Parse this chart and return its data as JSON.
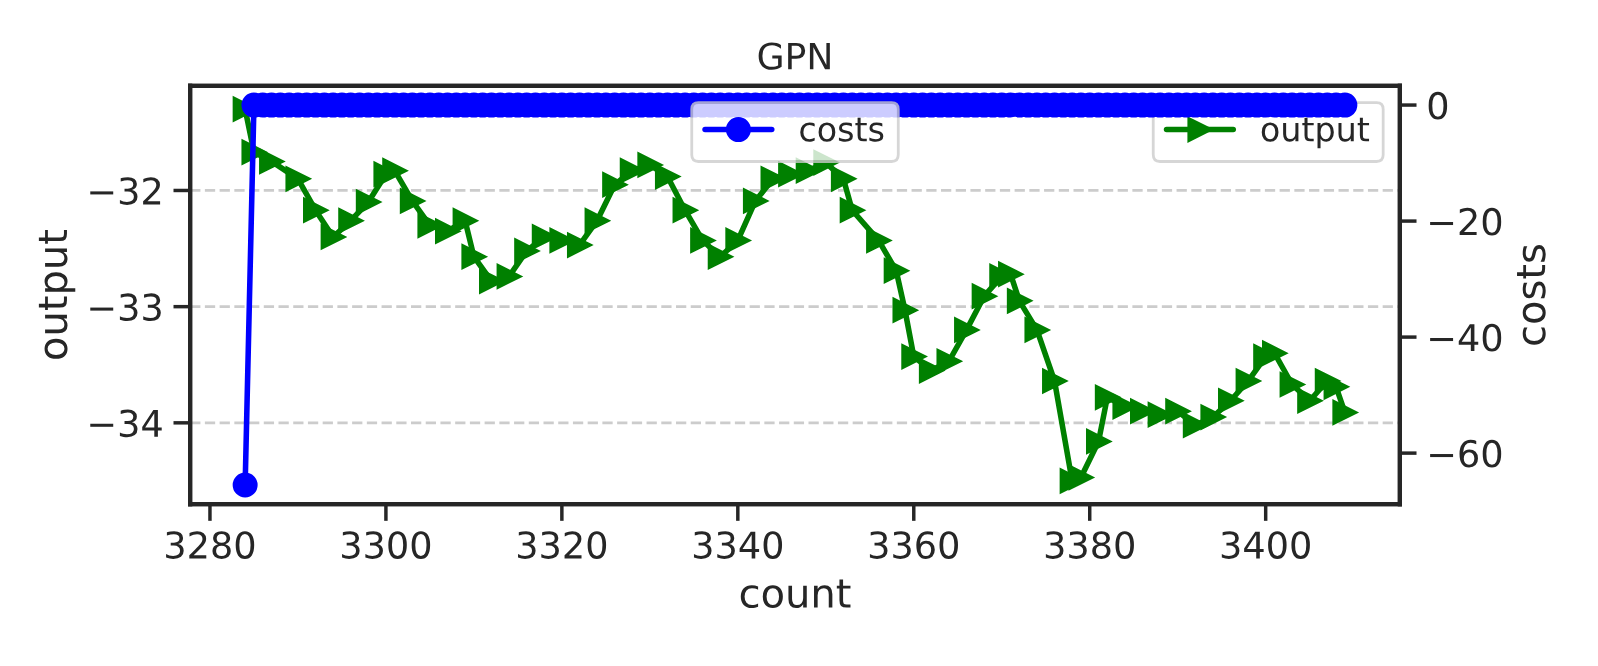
{
  "chart_data": {
    "type": "line",
    "title": "GPN",
    "xlabel": "count",
    "ylabel": "output",
    "y2label": "costs",
    "xlim": [
      3277.75,
      3415.25
    ],
    "xticks": [
      3280,
      3300,
      3320,
      3340,
      3360,
      3380,
      3400
    ],
    "ylim": [
      -34.7,
      -31.1
    ],
    "yticks": [
      -32,
      -33,
      -34
    ],
    "y2lim": [
      -68.8,
      3.3
    ],
    "y2ticks": [
      0,
      -20,
      -40,
      -60
    ],
    "grid": "y",
    "legend": "top right",
    "series": [
      {
        "name": "costs",
        "color": "#0000ff",
        "axis": "y2",
        "marker": "circle",
        "x": [
          3284,
          3285,
          3286,
          3287,
          3288,
          3289,
          3290,
          3291,
          3292,
          3293,
          3294,
          3295,
          3296,
          3297,
          3298,
          3299,
          3300,
          3301,
          3302,
          3303,
          3304,
          3305,
          3306,
          3307,
          3308,
          3309,
          3310,
          3311,
          3312,
          3313,
          3314,
          3315,
          3316,
          3317,
          3318,
          3319,
          3320,
          3321,
          3322,
          3323,
          3324,
          3325,
          3326,
          3327,
          3328,
          3329,
          3330,
          3331,
          3332,
          3333,
          3334,
          3335,
          3336,
          3337,
          3338,
          3339,
          3340,
          3341,
          3342,
          3343,
          3344,
          3345,
          3346,
          3347,
          3348,
          3349,
          3350,
          3351,
          3352,
          3353,
          3354,
          3355,
          3356,
          3357,
          3358,
          3359,
          3360,
          3361,
          3362,
          3363,
          3364,
          3365,
          3366,
          3367,
          3368,
          3369,
          3370,
          3371,
          3372,
          3373,
          3374,
          3375,
          3376,
          3377,
          3378,
          3379,
          3380,
          3381,
          3382,
          3383,
          3384,
          3385,
          3386,
          3387,
          3388,
          3389,
          3390,
          3391,
          3392,
          3393,
          3394,
          3395,
          3396,
          3397,
          3398,
          3399,
          3400,
          3401,
          3402,
          3403,
          3404,
          3405,
          3406,
          3407,
          3408,
          3409
        ],
        "values": [
          -65.5,
          0,
          0,
          0,
          0,
          0,
          0,
          0,
          0,
          0,
          0,
          0,
          0,
          0,
          0,
          0,
          0,
          0,
          0,
          0,
          0,
          0,
          0,
          0,
          0,
          0,
          0,
          0,
          0,
          0,
          0,
          0,
          0,
          0,
          0,
          0,
          0,
          0,
          0,
          0,
          0,
          0,
          0,
          0,
          0,
          0,
          0,
          0,
          0,
          0,
          0,
          0,
          0,
          0,
          0,
          0,
          0,
          0,
          0,
          0,
          0,
          0,
          0,
          0,
          0,
          0,
          0,
          0,
          0,
          0,
          0,
          0,
          0,
          0,
          0,
          0,
          0,
          0,
          0,
          0,
          0,
          0,
          0,
          0,
          0,
          0,
          0,
          0,
          0,
          0,
          0,
          0,
          0,
          0,
          0,
          0,
          0,
          0,
          0,
          0,
          0,
          0,
          0,
          0,
          0,
          0,
          0,
          0,
          0,
          0,
          0,
          0,
          0,
          0,
          0,
          0,
          0,
          0,
          0,
          0,
          0,
          0,
          0,
          0,
          0,
          0
        ]
      },
      {
        "name": "output",
        "color": "#008000",
        "marker": "triangle",
        "x": [
          3284,
          3285,
          3287,
          3290,
          3292,
          3294,
          3296,
          3298,
          3300,
          3301,
          3303,
          3305,
          3307,
          3309,
          3310,
          3312,
          3314,
          3316,
          3318,
          3320,
          3322,
          3324,
          3326,
          3328,
          3330,
          3332,
          3334,
          3336,
          3338,
          3340,
          3342,
          3344,
          3346,
          3348,
          3350,
          3352,
          3353,
          3356,
          3358,
          3359,
          3360,
          3362,
          3364,
          3366,
          3368,
          3370,
          3371,
          3372,
          3374,
          3376,
          3378,
          3379,
          3381,
          3382,
          3384,
          3386,
          3388,
          3390,
          3392,
          3394,
          3396,
          3398,
          3400,
          3401,
          3403,
          3405,
          3407,
          3408,
          3409
        ],
        "values": [
          -31.3,
          -31.67,
          -31.75,
          -31.9,
          -32.17,
          -32.4,
          -32.26,
          -32.1,
          -31.86,
          -31.83,
          -32.09,
          -32.3,
          -32.35,
          -32.26,
          -32.57,
          -32.78,
          -32.74,
          -32.52,
          -32.4,
          -32.43,
          -32.47,
          -32.26,
          -31.95,
          -31.83,
          -31.78,
          -31.88,
          -32.17,
          -32.43,
          -32.57,
          -32.43,
          -32.09,
          -31.9,
          -31.86,
          -31.83,
          -31.76,
          -31.9,
          -32.17,
          -32.43,
          -32.69,
          -33.03,
          -33.43,
          -33.55,
          -33.47,
          -33.2,
          -32.91,
          -32.74,
          -32.72,
          -32.95,
          -33.2,
          -33.64,
          -34.5,
          -34.47,
          -34.16,
          -33.78,
          -33.86,
          -33.9,
          -33.93,
          -33.9,
          -34.02,
          -33.95,
          -33.81,
          -33.64,
          -33.43,
          -33.4,
          -33.67,
          -33.81,
          -33.64,
          -33.69,
          -33.91
        ]
      }
    ]
  }
}
